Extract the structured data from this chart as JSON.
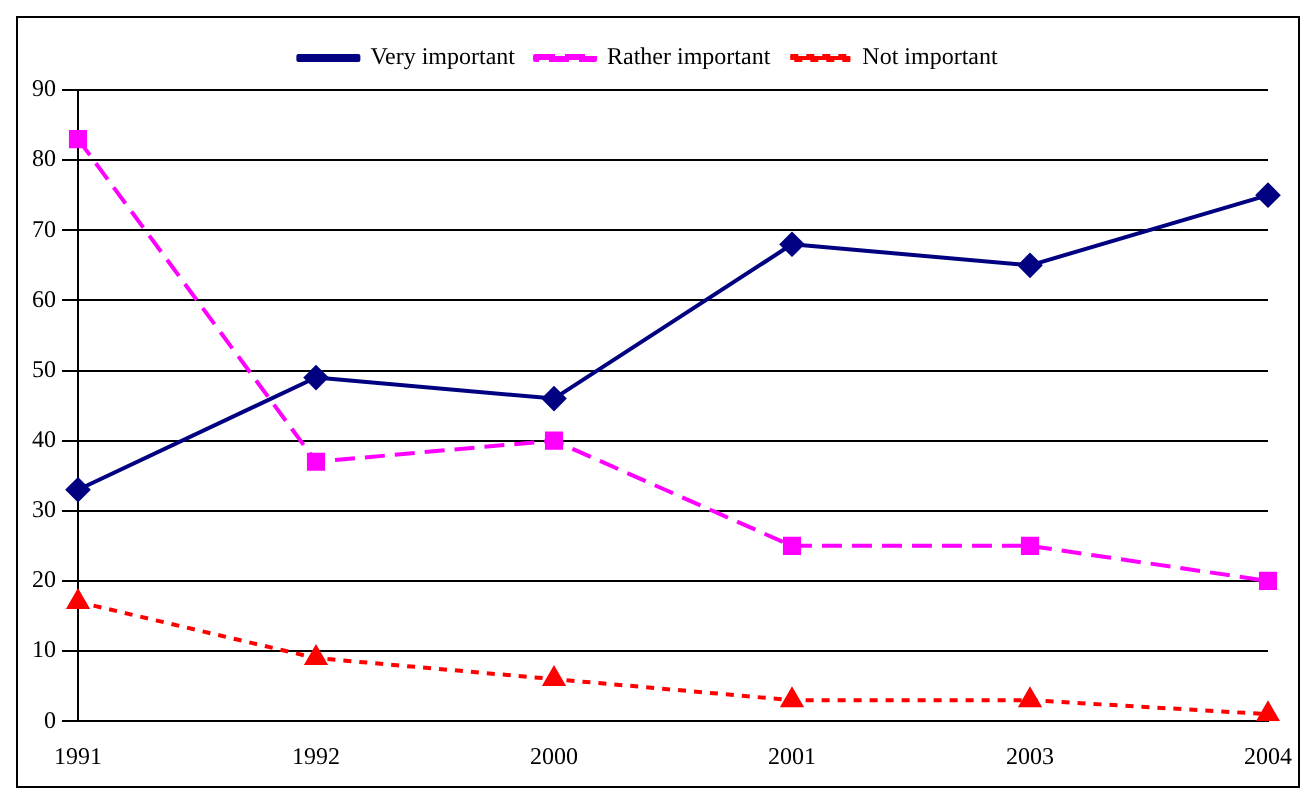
{
  "chart_data": {
    "type": "line",
    "categories": [
      "1991",
      "1992",
      "2000",
      "2001",
      "2003",
      "2004"
    ],
    "series": [
      {
        "name": "Very important",
        "color": "#000080",
        "values": [
          33,
          49,
          46,
          68,
          65,
          75
        ],
        "marker": "diamond",
        "line_style": "solid"
      },
      {
        "name": "Rather important",
        "color": "#ff00ff",
        "values": [
          83,
          37,
          40,
          25,
          25,
          20
        ],
        "marker": "square",
        "line_style": "dashed"
      },
      {
        "name": "Not important",
        "color": "#ff0000",
        "values": [
          17,
          9,
          6,
          3,
          3,
          1
        ],
        "marker": "triangle",
        "line_style": "dotted"
      }
    ],
    "ylim": [
      0,
      90
    ],
    "yticks": [
      0,
      10,
      20,
      30,
      40,
      50,
      60,
      70,
      80,
      90
    ],
    "grid": "y",
    "legend": "top"
  }
}
